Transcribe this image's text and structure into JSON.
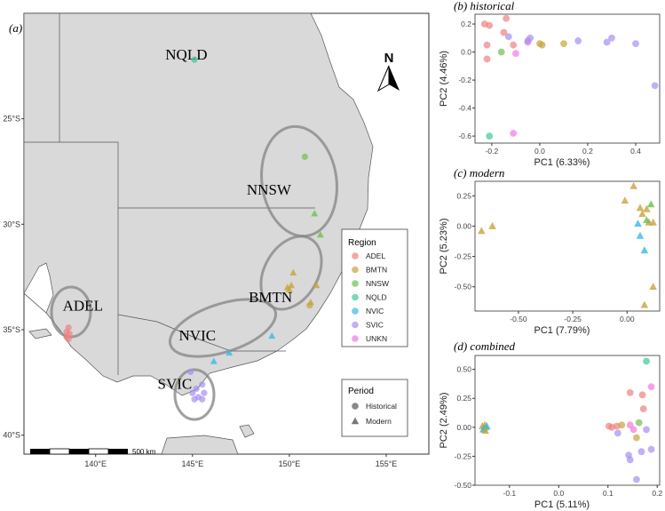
{
  "figure": {
    "colors": {
      "ADEL": "#f08080",
      "BMTN": "#c8a23c",
      "NNSW": "#6cc04a",
      "NQLD": "#3cc8a0",
      "NVIC": "#3ab8e8",
      "SVIC": "#a88ef0",
      "UNKN": "#f07ae0"
    }
  },
  "chart_data": [
    {
      "type": "map",
      "panel_label": "(a)",
      "north_label": "N",
      "scale_bar_label": "500 km",
      "x_ticks": [
        {
          "value": 140,
          "label": "140°E"
        },
        {
          "value": 145,
          "label": "145°E"
        },
        {
          "value": 150,
          "label": "150°E"
        },
        {
          "value": 155,
          "label": "155°E"
        }
      ],
      "y_ticks": [
        {
          "value": -25,
          "label": "25°S"
        },
        {
          "value": -30,
          "label": "30°S"
        },
        {
          "value": -35,
          "label": "35°S"
        },
        {
          "value": -40,
          "label": "40°S"
        }
      ],
      "xlim": [
        136.3,
        157.2
      ],
      "ylim": [
        -40.9,
        -20.0
      ],
      "region_labels": [
        {
          "text": "NQLD",
          "lon": 143.6,
          "lat": -22.2
        },
        {
          "text": "NNSW",
          "lon": 147.8,
          "lat": -28.6
        },
        {
          "text": "BMTN",
          "lon": 147.9,
          "lat": -33.7
        },
        {
          "text": "ADEL",
          "lon": 138.3,
          "lat": -34.1
        },
        {
          "text": "NVIC",
          "lon": 144.3,
          "lat": -35.5
        },
        {
          "text": "SVIC",
          "lon": 143.2,
          "lat": -37.8
        }
      ],
      "points": [
        {
          "region": "NQLD",
          "period": "Historical",
          "lon": 145.1,
          "lat": -22.2
        },
        {
          "region": "NNSW",
          "period": "Historical",
          "lon": 150.8,
          "lat": -26.8
        },
        {
          "region": "NNSW",
          "period": "Modern",
          "lon": 151.3,
          "lat": -29.5
        },
        {
          "region": "NNSW",
          "period": "Modern",
          "lon": 151.6,
          "lat": -30.5
        },
        {
          "region": "BMTN",
          "period": "Modern",
          "lon": 150.2,
          "lat": -32.3
        },
        {
          "region": "BMTN",
          "period": "Modern",
          "lon": 150.1,
          "lat": -32.9
        },
        {
          "region": "BMTN",
          "period": "Modern",
          "lon": 150.0,
          "lat": -33.1
        },
        {
          "region": "BMTN",
          "period": "Modern",
          "lon": 149.9,
          "lat": -33.0
        },
        {
          "region": "BMTN",
          "period": "Modern",
          "lon": 151.4,
          "lat": -32.9
        },
        {
          "region": "BMTN",
          "period": "Modern",
          "lon": 151.1,
          "lat": -33.7
        },
        {
          "region": "BMTN",
          "period": "Historical",
          "lon": 151.05,
          "lat": -33.85
        },
        {
          "region": "NVIC",
          "period": "Modern",
          "lon": 149.1,
          "lat": -35.3
        },
        {
          "region": "NVIC",
          "period": "Modern",
          "lon": 146.9,
          "lat": -36.1
        },
        {
          "region": "NVIC",
          "period": "Modern",
          "lon": 146.1,
          "lat": -36.5
        },
        {
          "region": "SVIC",
          "period": "Historical",
          "lon": 144.9,
          "lat": -37.0
        },
        {
          "region": "SVIC",
          "period": "Historical",
          "lon": 145.5,
          "lat": -37.6
        },
        {
          "region": "SVIC",
          "period": "Historical",
          "lon": 145.2,
          "lat": -37.8
        },
        {
          "region": "SVIC",
          "period": "Historical",
          "lon": 145.0,
          "lat": -38.0
        },
        {
          "region": "SVIC",
          "period": "Historical",
          "lon": 145.6,
          "lat": -38.0
        },
        {
          "region": "SVIC",
          "period": "Historical",
          "lon": 145.3,
          "lat": -38.2
        },
        {
          "region": "SVIC",
          "period": "Historical",
          "lon": 145.1,
          "lat": -38.3
        },
        {
          "region": "SVIC",
          "period": "Historical",
          "lon": 145.5,
          "lat": -38.3
        },
        {
          "region": "ADEL",
          "period": "Historical",
          "lon": 138.6,
          "lat": -34.9
        },
        {
          "region": "ADEL",
          "period": "Historical",
          "lon": 138.5,
          "lat": -35.1
        },
        {
          "region": "ADEL",
          "period": "Historical",
          "lon": 138.65,
          "lat": -35.2
        },
        {
          "region": "ADEL",
          "period": "Historical",
          "lon": 138.5,
          "lat": -35.35
        },
        {
          "region": "ADEL",
          "period": "Historical",
          "lon": 138.6,
          "lat": -35.45
        }
      ],
      "legend_region_title": "Region",
      "legend_regions": [
        "ADEL",
        "BMTN",
        "NNSW",
        "NQLD",
        "NVIC",
        "SVIC",
        "UNKN"
      ],
      "legend_period_title": "Period",
      "legend_periods": [
        "Historical",
        "Modern"
      ]
    },
    {
      "type": "scatter",
      "panel_label": "(b)",
      "title": "historical",
      "xlabel": "PC1 (6.33%)",
      "ylabel": "PC2 (4.46%)",
      "xlim": [
        -0.27,
        0.5
      ],
      "ylim": [
        -0.65,
        0.27
      ],
      "x_ticks": [
        -0.2,
        0.0,
        0.2,
        0.4
      ],
      "x_tick_labels": [
        "-0.2",
        "0.0",
        "0.2",
        "0.4"
      ],
      "y_ticks": [
        0.2,
        0.0,
        -0.2,
        -0.4,
        -0.6
      ],
      "y_tick_labels": [
        "0.2",
        "0.0",
        "-0.2",
        "-0.4",
        "-0.6"
      ],
      "points": [
        {
          "region": "ADEL",
          "shape": "circle",
          "x": -0.23,
          "y": 0.2
        },
        {
          "region": "ADEL",
          "shape": "circle",
          "x": -0.21,
          "y": 0.19
        },
        {
          "region": "ADEL",
          "shape": "circle",
          "x": -0.22,
          "y": 0.05
        },
        {
          "region": "ADEL",
          "shape": "circle",
          "x": -0.22,
          "y": -0.05
        },
        {
          "region": "ADEL",
          "shape": "circle",
          "x": -0.14,
          "y": 0.24
        },
        {
          "region": "ADEL",
          "shape": "circle",
          "x": -0.15,
          "y": 0.14
        },
        {
          "region": "ADEL",
          "shape": "circle",
          "x": -0.11,
          "y": 0.05
        },
        {
          "region": "UNKN",
          "shape": "circle",
          "x": -0.1,
          "y": -0.01
        },
        {
          "region": "UNKN",
          "shape": "circle",
          "x": -0.05,
          "y": 0.07
        },
        {
          "region": "NNSW",
          "shape": "circle",
          "x": -0.16,
          "y": 0.0
        },
        {
          "region": "NQLD",
          "shape": "circle",
          "x": -0.21,
          "y": -0.6
        },
        {
          "region": "UNKN",
          "shape": "circle",
          "x": -0.11,
          "y": -0.58
        },
        {
          "region": "SVIC",
          "shape": "circle",
          "x": -0.13,
          "y": 0.11
        },
        {
          "region": "SVIC",
          "shape": "circle",
          "x": -0.04,
          "y": 0.1
        },
        {
          "region": "SVIC",
          "shape": "circle",
          "x": -0.05,
          "y": 0.08
        },
        {
          "region": "SVIC",
          "shape": "circle",
          "x": 0.16,
          "y": 0.08
        },
        {
          "region": "SVIC",
          "shape": "circle",
          "x": 0.28,
          "y": 0.07
        },
        {
          "region": "SVIC",
          "shape": "circle",
          "x": 0.3,
          "y": 0.1
        },
        {
          "region": "SVIC",
          "shape": "circle",
          "x": 0.4,
          "y": 0.06
        },
        {
          "region": "SVIC",
          "shape": "circle",
          "x": 0.48,
          "y": -0.24
        },
        {
          "region": "BMTN",
          "shape": "circle",
          "x": 0.0,
          "y": 0.06
        },
        {
          "region": "BMTN",
          "shape": "circle",
          "x": 0.01,
          "y": 0.05
        },
        {
          "region": "BMTN",
          "shape": "circle",
          "x": 0.1,
          "y": 0.06
        }
      ]
    },
    {
      "type": "scatter",
      "panel_label": "(c)",
      "title": "modern",
      "xlabel": "PC1 (7.79%)",
      "ylabel": "PC2 (5.23%)",
      "xlim": [
        -0.7,
        0.15
      ],
      "ylim": [
        -0.7,
        0.37
      ],
      "x_ticks": [
        -0.5,
        -0.25,
        0.0
      ],
      "x_tick_labels": [
        "-0.50",
        "-0.25",
        "0.00"
      ],
      "y_ticks": [
        0.25,
        0.0,
        -0.25,
        -0.5
      ],
      "y_tick_labels": [
        "0.25",
        "0.00",
        "-0.25",
        "-0.50"
      ],
      "points": [
        {
          "region": "BMTN",
          "shape": "triangle",
          "x": -0.67,
          "y": -0.04
        },
        {
          "region": "BMTN",
          "shape": "triangle",
          "x": -0.62,
          "y": 0.0
        },
        {
          "region": "BMTN",
          "shape": "triangle",
          "x": 0.03,
          "y": 0.33
        },
        {
          "region": "BMTN",
          "shape": "triangle",
          "x": -0.01,
          "y": 0.21
        },
        {
          "region": "BMTN",
          "shape": "triangle",
          "x": 0.06,
          "y": 0.15
        },
        {
          "region": "BMTN",
          "shape": "triangle",
          "x": 0.09,
          "y": 0.14
        },
        {
          "region": "BMTN",
          "shape": "triangle",
          "x": 0.07,
          "y": 0.1
        },
        {
          "region": "BMTN",
          "shape": "triangle",
          "x": 0.1,
          "y": 0.03
        },
        {
          "region": "BMTN",
          "shape": "triangle",
          "x": 0.12,
          "y": 0.03
        },
        {
          "region": "BMTN",
          "shape": "triangle",
          "x": 0.12,
          "y": -0.5
        },
        {
          "region": "BMTN",
          "shape": "triangle",
          "x": 0.08,
          "y": -0.65
        },
        {
          "region": "NNSW",
          "shape": "triangle",
          "x": 0.11,
          "y": 0.18
        },
        {
          "region": "NNSW",
          "shape": "triangle",
          "x": 0.09,
          "y": 0.05
        },
        {
          "region": "NVIC",
          "shape": "triangle",
          "x": 0.05,
          "y": 0.02
        },
        {
          "region": "NVIC",
          "shape": "triangle",
          "x": 0.06,
          "y": -0.08
        },
        {
          "region": "NVIC",
          "shape": "triangle",
          "x": 0.08,
          "y": -0.2
        }
      ]
    },
    {
      "type": "scatter",
      "panel_label": "(d)",
      "title": "combined",
      "xlabel": "PC1 (5.11%)",
      "ylabel": "PC2 (2.49%)",
      "xlim": [
        -0.17,
        0.205
      ],
      "ylim": [
        -0.5,
        0.62
      ],
      "x_ticks": [
        -0.1,
        0.0,
        0.1,
        0.2
      ],
      "x_tick_labels": [
        "-0.1",
        "0.0",
        "0.1",
        "0.2"
      ],
      "y_ticks": [
        0.5,
        0.25,
        0.0,
        -0.25,
        -0.5
      ],
      "y_tick_labels": [
        "0.50",
        "0.25",
        "0.00",
        "-0.25",
        "-0.50"
      ],
      "points": [
        {
          "region": "BMTN",
          "shape": "triangle",
          "x": -0.155,
          "y": 0.01
        },
        {
          "region": "BMTN",
          "shape": "triangle",
          "x": -0.152,
          "y": -0.01
        },
        {
          "region": "BMTN",
          "shape": "triangle",
          "x": -0.15,
          "y": 0.02
        },
        {
          "region": "NNSW",
          "shape": "triangle",
          "x": -0.148,
          "y": 0.0
        },
        {
          "region": "NVIC",
          "shape": "triangle",
          "x": -0.146,
          "y": 0.01
        },
        {
          "region": "NVIC",
          "shape": "triangle",
          "x": -0.153,
          "y": -0.02
        },
        {
          "region": "BMTN",
          "shape": "triangle",
          "x": -0.149,
          "y": -0.03
        },
        {
          "region": "NQLD",
          "shape": "circle",
          "x": 0.178,
          "y": 0.57
        },
        {
          "region": "UNKN",
          "shape": "circle",
          "x": 0.188,
          "y": 0.35
        },
        {
          "region": "ADEL",
          "shape": "circle",
          "x": 0.145,
          "y": 0.3
        },
        {
          "region": "ADEL",
          "shape": "circle",
          "x": 0.17,
          "y": 0.28
        },
        {
          "region": "ADEL",
          "shape": "circle",
          "x": 0.172,
          "y": 0.16
        },
        {
          "region": "ADEL",
          "shape": "circle",
          "x": 0.102,
          "y": 0.01
        },
        {
          "region": "ADEL",
          "shape": "circle",
          "x": 0.108,
          "y": 0.0
        },
        {
          "region": "ADEL",
          "shape": "circle",
          "x": 0.118,
          "y": 0.01
        },
        {
          "region": "UNKN",
          "shape": "circle",
          "x": 0.145,
          "y": 0.02
        },
        {
          "region": "UNKN",
          "shape": "circle",
          "x": 0.152,
          "y": -0.02
        },
        {
          "region": "BMTN",
          "shape": "circle",
          "x": 0.128,
          "y": 0.02
        },
        {
          "region": "BMTN",
          "shape": "circle",
          "x": 0.158,
          "y": -0.09
        },
        {
          "region": "NNSW",
          "shape": "circle",
          "x": 0.163,
          "y": 0.04
        },
        {
          "region": "SVIC",
          "shape": "circle",
          "x": 0.12,
          "y": -0.05
        },
        {
          "region": "SVIC",
          "shape": "circle",
          "x": 0.178,
          "y": -0.02
        },
        {
          "region": "SVIC",
          "shape": "circle",
          "x": 0.168,
          "y": -0.21
        },
        {
          "region": "SVIC",
          "shape": "circle",
          "x": 0.142,
          "y": -0.24
        },
        {
          "region": "SVIC",
          "shape": "circle",
          "x": 0.145,
          "y": -0.28
        },
        {
          "region": "SVIC",
          "shape": "circle",
          "x": 0.188,
          "y": -0.19
        },
        {
          "region": "SVIC",
          "shape": "circle",
          "x": 0.158,
          "y": -0.45
        }
      ]
    }
  ]
}
